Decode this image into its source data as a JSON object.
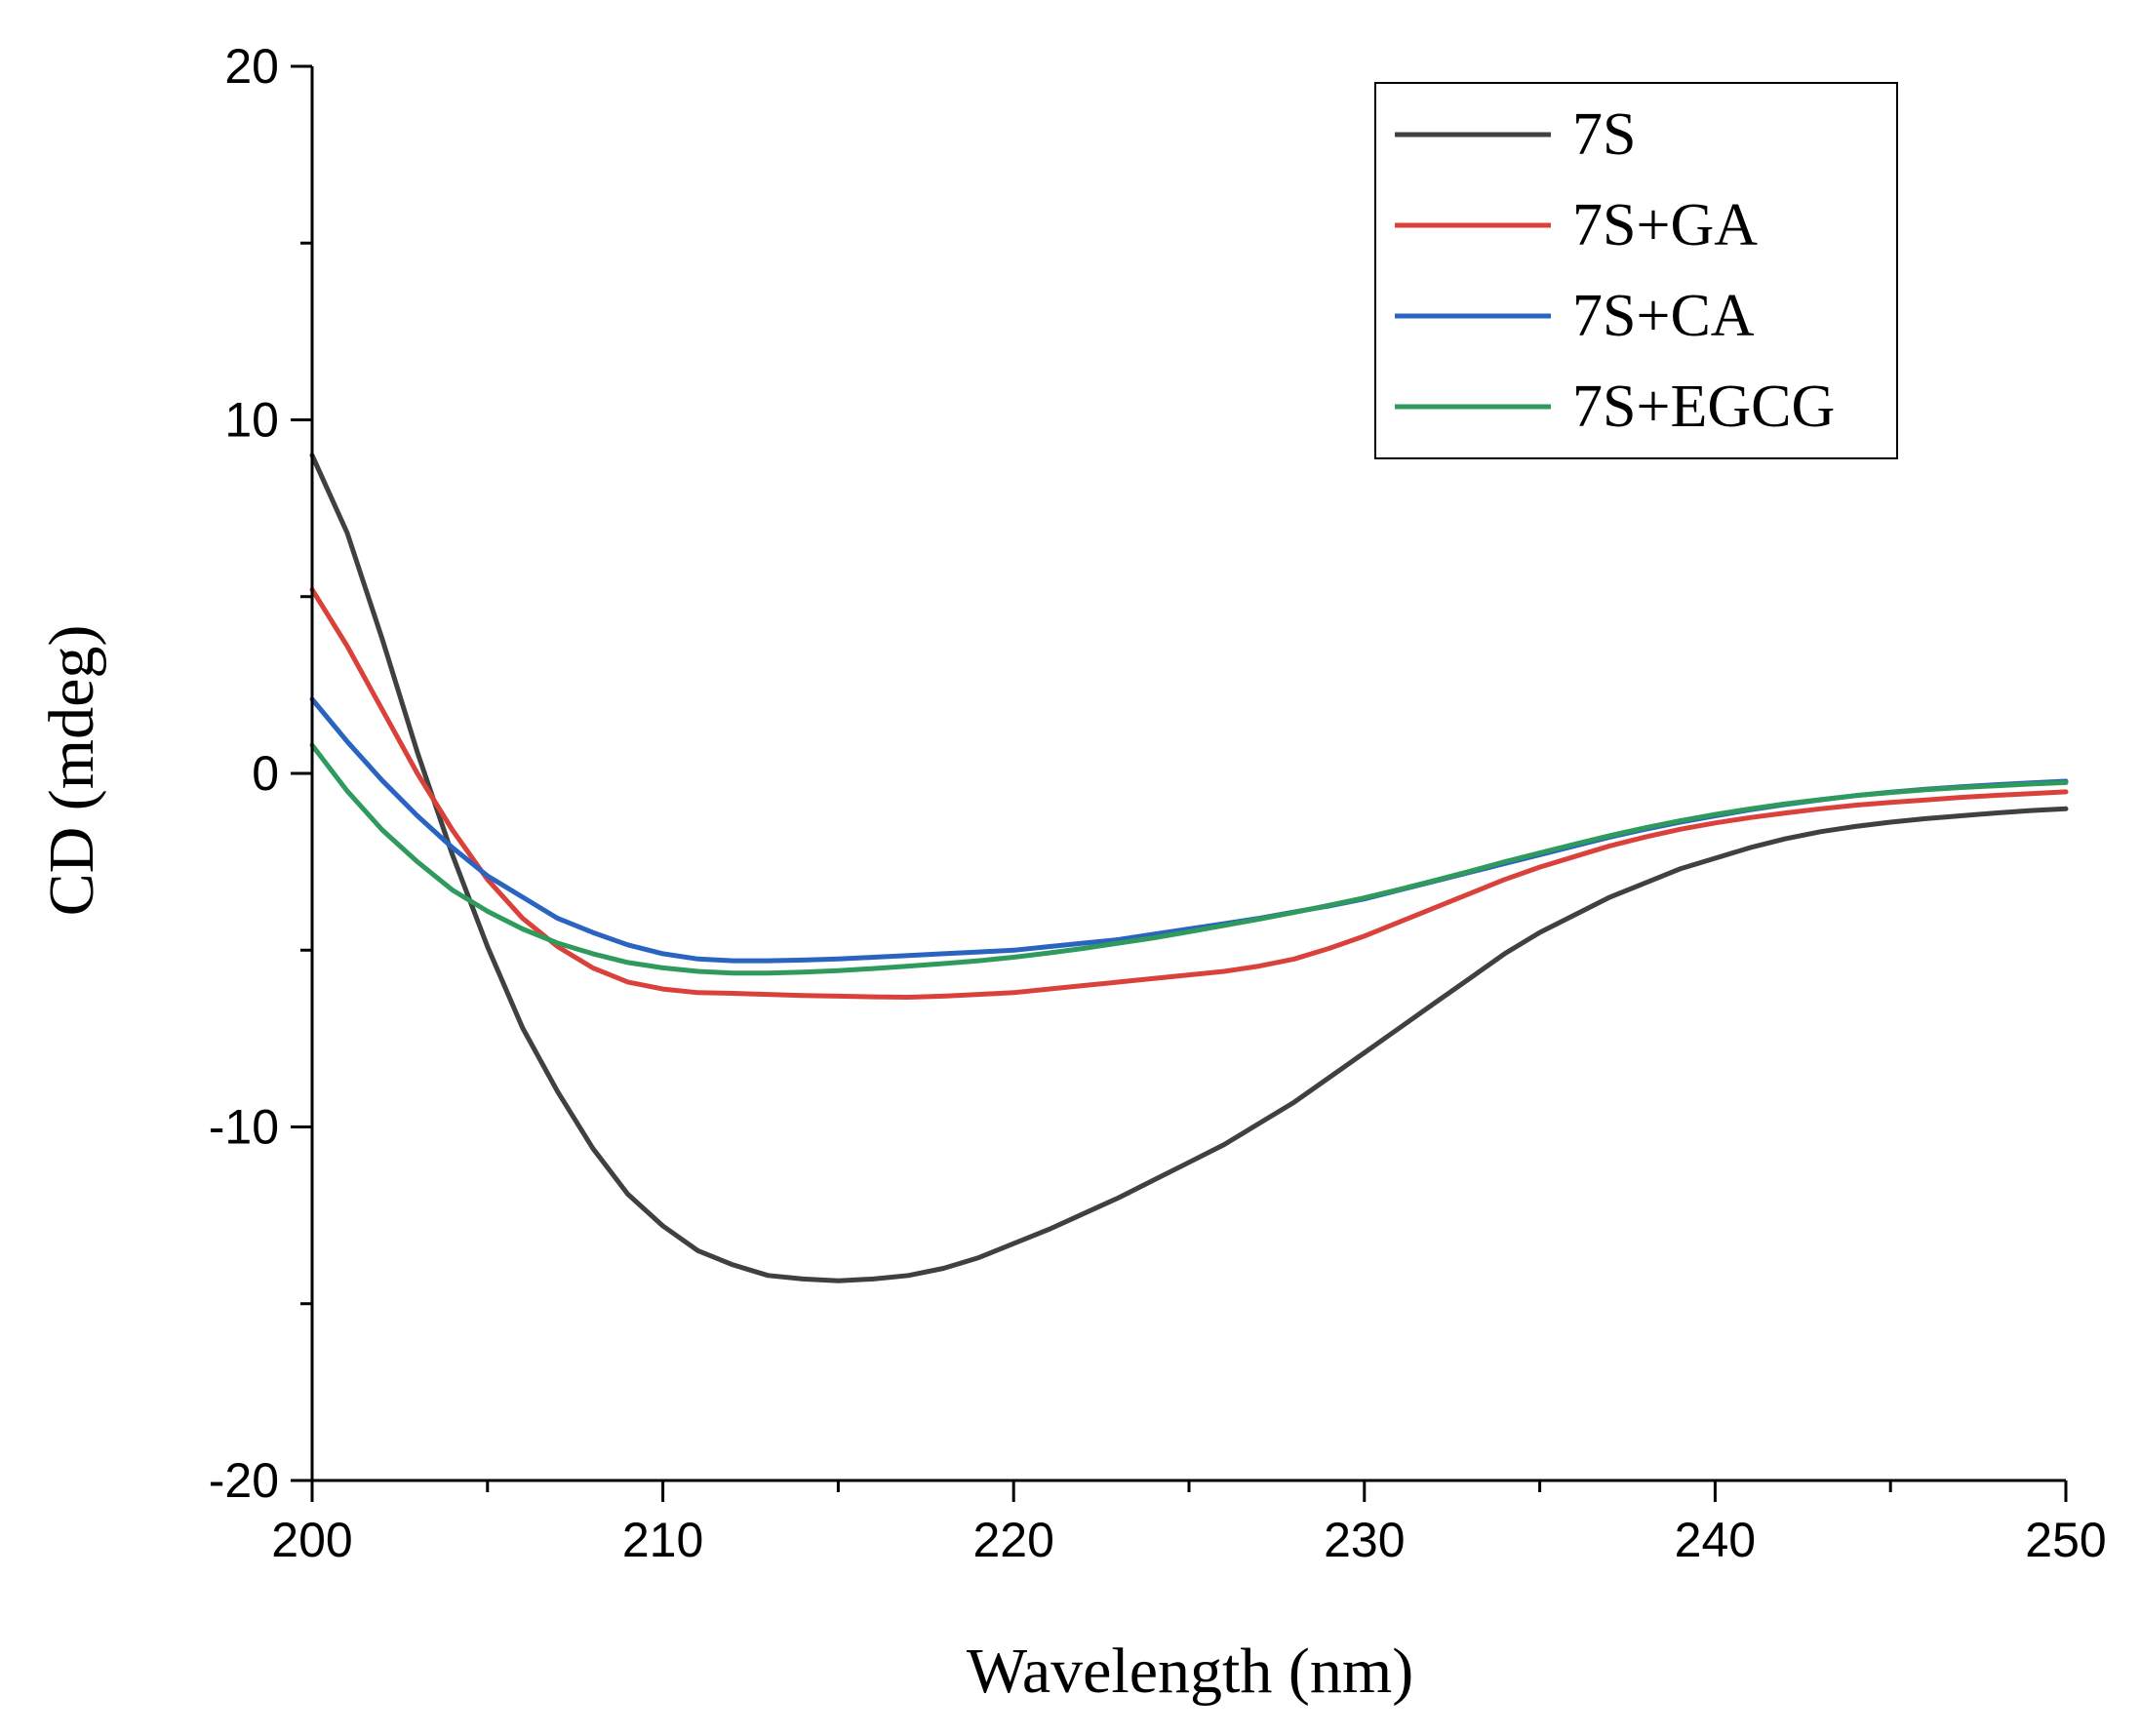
{
  "chart_data": {
    "type": "line",
    "title": "",
    "xlabel": "Wavelength (nm)",
    "ylabel": "CD (mdeg)",
    "xlim": [
      200,
      250
    ],
    "ylim": [
      -20,
      20
    ],
    "x_ticks": [
      200,
      210,
      220,
      230,
      240,
      250
    ],
    "y_ticks": [
      -20,
      -10,
      0,
      10,
      20
    ],
    "x_tick_labels": [
      "200",
      "210",
      "220",
      "230",
      "240",
      "250"
    ],
    "y_tick_labels": [
      "-20",
      "-10",
      "0",
      "10",
      "20"
    ],
    "grid": false,
    "legend_position": "top-right",
    "series": [
      {
        "name": "7S",
        "color": "#404040",
        "points": [
          [
            200,
            9.0
          ],
          [
            201,
            6.8
          ],
          [
            202,
            3.8
          ],
          [
            203,
            0.6
          ],
          [
            204,
            -2.3
          ],
          [
            205,
            -4.9
          ],
          [
            206,
            -7.2
          ],
          [
            207,
            -9.0
          ],
          [
            208,
            -10.6
          ],
          [
            209,
            -11.9
          ],
          [
            210,
            -12.8
          ],
          [
            211,
            -13.5
          ],
          [
            212,
            -13.9
          ],
          [
            213,
            -14.2
          ],
          [
            214,
            -14.3
          ],
          [
            215,
            -14.35
          ],
          [
            216,
            -14.3
          ],
          [
            217,
            -14.2
          ],
          [
            218,
            -14.0
          ],
          [
            219,
            -13.7
          ],
          [
            220,
            -13.3
          ],
          [
            221,
            -12.9
          ],
          [
            222,
            -12.45
          ],
          [
            223,
            -12.0
          ],
          [
            224,
            -11.5
          ],
          [
            225,
            -11.0
          ],
          [
            226,
            -10.5
          ],
          [
            227,
            -9.9
          ],
          [
            228,
            -9.3
          ],
          [
            229,
            -8.6
          ],
          [
            230,
            -7.9
          ],
          [
            231,
            -7.2
          ],
          [
            232,
            -6.5
          ],
          [
            233,
            -5.8
          ],
          [
            234,
            -5.1
          ],
          [
            235,
            -4.5
          ],
          [
            236,
            -4.0
          ],
          [
            237,
            -3.5
          ],
          [
            238,
            -3.1
          ],
          [
            239,
            -2.7
          ],
          [
            240,
            -2.4
          ],
          [
            241,
            -2.1
          ],
          [
            242,
            -1.85
          ],
          [
            243,
            -1.65
          ],
          [
            244,
            -1.5
          ],
          [
            245,
            -1.38
          ],
          [
            246,
            -1.28
          ],
          [
            247,
            -1.2
          ],
          [
            248,
            -1.12
          ],
          [
            249,
            -1.05
          ],
          [
            250,
            -1.0
          ]
        ]
      },
      {
        "name": "7S+GA",
        "color": "#d9413a",
        "points": [
          [
            200,
            5.2
          ],
          [
            201,
            3.6
          ],
          [
            202,
            1.8
          ],
          [
            203,
            0.0
          ],
          [
            204,
            -1.6
          ],
          [
            205,
            -3.0
          ],
          [
            206,
            -4.1
          ],
          [
            207,
            -4.9
          ],
          [
            208,
            -5.5
          ],
          [
            209,
            -5.9
          ],
          [
            210,
            -6.1
          ],
          [
            211,
            -6.2
          ],
          [
            212,
            -6.22
          ],
          [
            213,
            -6.25
          ],
          [
            214,
            -6.28
          ],
          [
            215,
            -6.3
          ],
          [
            216,
            -6.32
          ],
          [
            217,
            -6.33
          ],
          [
            218,
            -6.3
          ],
          [
            219,
            -6.25
          ],
          [
            220,
            -6.2
          ],
          [
            221,
            -6.1
          ],
          [
            222,
            -6.0
          ],
          [
            223,
            -5.9
          ],
          [
            224,
            -5.8
          ],
          [
            225,
            -5.7
          ],
          [
            226,
            -5.6
          ],
          [
            227,
            -5.45
          ],
          [
            228,
            -5.25
          ],
          [
            229,
            -4.95
          ],
          [
            230,
            -4.6
          ],
          [
            231,
            -4.2
          ],
          [
            232,
            -3.8
          ],
          [
            233,
            -3.4
          ],
          [
            234,
            -3.0
          ],
          [
            235,
            -2.65
          ],
          [
            236,
            -2.35
          ],
          [
            237,
            -2.05
          ],
          [
            238,
            -1.8
          ],
          [
            239,
            -1.58
          ],
          [
            240,
            -1.4
          ],
          [
            241,
            -1.25
          ],
          [
            242,
            -1.12
          ],
          [
            243,
            -1.0
          ],
          [
            244,
            -0.9
          ],
          [
            245,
            -0.82
          ],
          [
            246,
            -0.75
          ],
          [
            247,
            -0.68
          ],
          [
            248,
            -0.62
          ],
          [
            249,
            -0.57
          ],
          [
            250,
            -0.52
          ]
        ]
      },
      {
        "name": "7S+CA",
        "color": "#2a64c0",
        "points": [
          [
            200,
            2.1
          ],
          [
            201,
            0.9
          ],
          [
            202,
            -0.2
          ],
          [
            203,
            -1.2
          ],
          [
            204,
            -2.1
          ],
          [
            205,
            -2.9
          ],
          [
            206,
            -3.5
          ],
          [
            207,
            -4.1
          ],
          [
            208,
            -4.5
          ],
          [
            209,
            -4.85
          ],
          [
            210,
            -5.1
          ],
          [
            211,
            -5.25
          ],
          [
            212,
            -5.3
          ],
          [
            213,
            -5.3
          ],
          [
            214,
            -5.28
          ],
          [
            215,
            -5.25
          ],
          [
            216,
            -5.2
          ],
          [
            217,
            -5.15
          ],
          [
            218,
            -5.1
          ],
          [
            219,
            -5.05
          ],
          [
            220,
            -5.0
          ],
          [
            221,
            -4.9
          ],
          [
            222,
            -4.8
          ],
          [
            223,
            -4.7
          ],
          [
            224,
            -4.55
          ],
          [
            225,
            -4.4
          ],
          [
            226,
            -4.25
          ],
          [
            227,
            -4.1
          ],
          [
            228,
            -3.92
          ],
          [
            229,
            -3.75
          ],
          [
            230,
            -3.55
          ],
          [
            231,
            -3.3
          ],
          [
            232,
            -3.05
          ],
          [
            233,
            -2.8
          ],
          [
            234,
            -2.55
          ],
          [
            235,
            -2.3
          ],
          [
            236,
            -2.05
          ],
          [
            237,
            -1.8
          ],
          [
            238,
            -1.58
          ],
          [
            239,
            -1.38
          ],
          [
            240,
            -1.2
          ],
          [
            241,
            -1.03
          ],
          [
            242,
            -0.88
          ],
          [
            243,
            -0.75
          ],
          [
            244,
            -0.63
          ],
          [
            245,
            -0.53
          ],
          [
            246,
            -0.45
          ],
          [
            247,
            -0.38
          ],
          [
            248,
            -0.32
          ],
          [
            249,
            -0.27
          ],
          [
            250,
            -0.22
          ]
        ]
      },
      {
        "name": "7S+EGCG",
        "color": "#2e9a5c",
        "points": [
          [
            200,
            0.8
          ],
          [
            201,
            -0.5
          ],
          [
            202,
            -1.6
          ],
          [
            203,
            -2.5
          ],
          [
            204,
            -3.3
          ],
          [
            205,
            -3.9
          ],
          [
            206,
            -4.4
          ],
          [
            207,
            -4.8
          ],
          [
            208,
            -5.1
          ],
          [
            209,
            -5.35
          ],
          [
            210,
            -5.5
          ],
          [
            211,
            -5.6
          ],
          [
            212,
            -5.65
          ],
          [
            213,
            -5.65
          ],
          [
            214,
            -5.62
          ],
          [
            215,
            -5.58
          ],
          [
            216,
            -5.52
          ],
          [
            217,
            -5.45
          ],
          [
            218,
            -5.38
          ],
          [
            219,
            -5.3
          ],
          [
            220,
            -5.2
          ],
          [
            221,
            -5.08
          ],
          [
            222,
            -4.95
          ],
          [
            223,
            -4.8
          ],
          [
            224,
            -4.65
          ],
          [
            225,
            -4.48
          ],
          [
            226,
            -4.3
          ],
          [
            227,
            -4.12
          ],
          [
            228,
            -3.93
          ],
          [
            229,
            -3.73
          ],
          [
            230,
            -3.52
          ],
          [
            231,
            -3.28
          ],
          [
            232,
            -3.03
          ],
          [
            233,
            -2.77
          ],
          [
            234,
            -2.5
          ],
          [
            235,
            -2.25
          ],
          [
            236,
            -2.0
          ],
          [
            237,
            -1.76
          ],
          [
            238,
            -1.54
          ],
          [
            239,
            -1.34
          ],
          [
            240,
            -1.16
          ],
          [
            241,
            -1.0
          ],
          [
            242,
            -0.86
          ],
          [
            243,
            -0.74
          ],
          [
            244,
            -0.63
          ],
          [
            245,
            -0.54
          ],
          [
            246,
            -0.46
          ],
          [
            247,
            -0.4
          ],
          [
            248,
            -0.35
          ],
          [
            249,
            -0.3
          ],
          [
            250,
            -0.26
          ]
        ]
      }
    ]
  }
}
